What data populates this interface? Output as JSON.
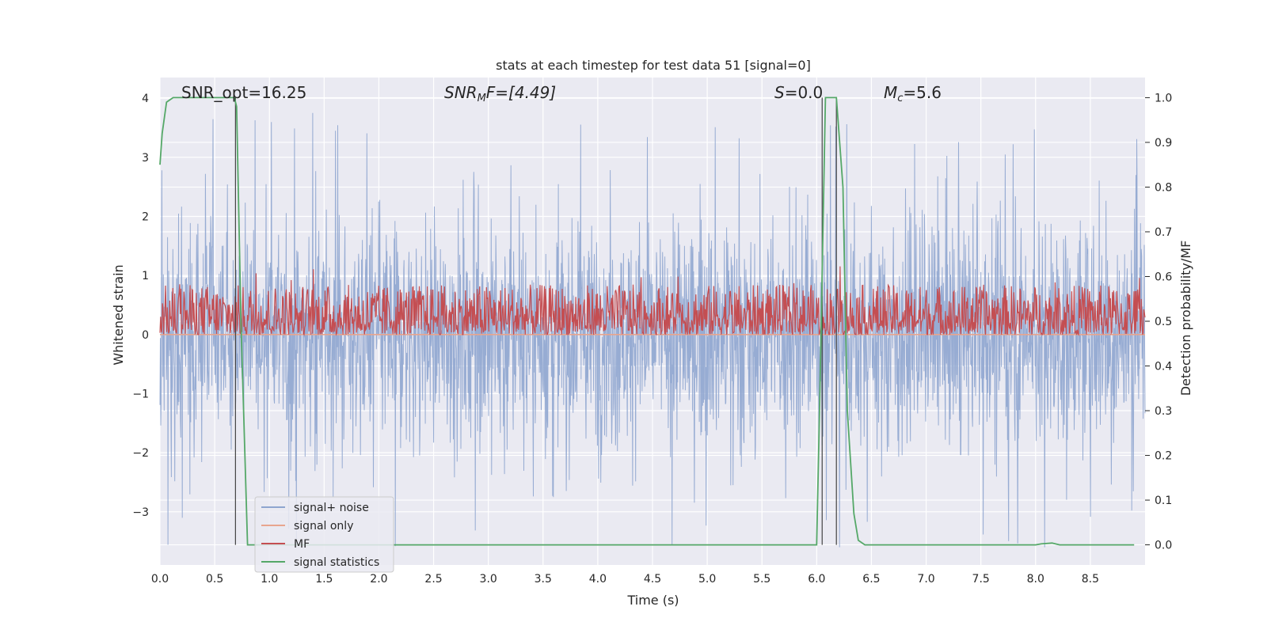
{
  "chart_data": {
    "type": "line",
    "title": "stats at each timestep for test data 51 [signal=0]",
    "xlabel": "Time (s)",
    "ylabel_left": "Whitened strain",
    "ylabel_right": "Detection probability/MF",
    "xlim": [
      0,
      9
    ],
    "ylim_left": [
      -3.9,
      4.35
    ],
    "ylim_right": [
      -0.045,
      1.045
    ],
    "x_ticks": [
      "0.0",
      "0.5",
      "1.0",
      "1.5",
      "2.0",
      "2.5",
      "3.0",
      "3.5",
      "4.0",
      "4.5",
      "5.0",
      "5.5",
      "6.0",
      "6.5",
      "7.0",
      "7.5",
      "8.0",
      "8.5"
    ],
    "y_ticks_left": [
      "−3",
      "−2",
      "−1",
      "0",
      "1",
      "2",
      "3",
      "4"
    ],
    "y_ticks_right": [
      "0.0",
      "0.1",
      "0.2",
      "0.3",
      "0.4",
      "0.5",
      "0.6",
      "0.7",
      "0.8",
      "0.9",
      "1.0"
    ],
    "grid": true,
    "legend_position": "lower left",
    "annotations": {
      "snr_opt": "SNR_opt=16.25",
      "snr_mf_base": "SNR",
      "snr_mf_sub": "M",
      "snr_mf_rest": "F=[4.49]",
      "s_var": "S",
      "s_rest": "=0.0",
      "mc_var": "M",
      "mc_sub": "c",
      "mc_rest": "=5.6"
    },
    "vertical_markers_s": [
      0.69,
      6.05,
      6.18
    ],
    "series": [
      {
        "name": "signal+ noise",
        "color": "#8ea5cf",
        "axis": "left",
        "description_level": "noise band approx ±2.2 with spikes to ±4"
      },
      {
        "name": "signal only",
        "color": "#e8a58e",
        "axis": "left",
        "values_const": 0.0
      },
      {
        "name": "MF",
        "color": "#c44e52",
        "axis": "right",
        "band": [
          0.47,
          0.61
        ]
      },
      {
        "name": "signal statistics",
        "color": "#55a868",
        "axis": "right",
        "x": [
          0.0,
          0.02,
          0.06,
          0.12,
          0.2,
          0.4,
          0.6,
          0.68,
          0.7,
          0.74,
          0.8,
          0.85,
          1.0,
          2.0,
          3.0,
          4.0,
          5.0,
          5.8,
          6.0,
          6.03,
          6.08,
          6.12,
          6.18,
          6.24,
          6.28,
          6.34,
          6.38,
          6.44,
          7.0,
          7.5,
          8.0,
          8.05,
          8.15,
          8.22,
          8.3,
          8.9
        ],
        "y": [
          0.85,
          0.92,
          0.99,
          1.0,
          1.0,
          1.0,
          1.0,
          1.0,
          0.98,
          0.5,
          0.0,
          0.0,
          0.0,
          0.0,
          0.0,
          0.0,
          0.0,
          0.0,
          0.0,
          0.35,
          1.0,
          1.0,
          1.0,
          0.8,
          0.3,
          0.07,
          0.01,
          0.0,
          0.0,
          0.0,
          0.0,
          0.002,
          0.004,
          0.0,
          0.0,
          0.0
        ]
      }
    ]
  }
}
